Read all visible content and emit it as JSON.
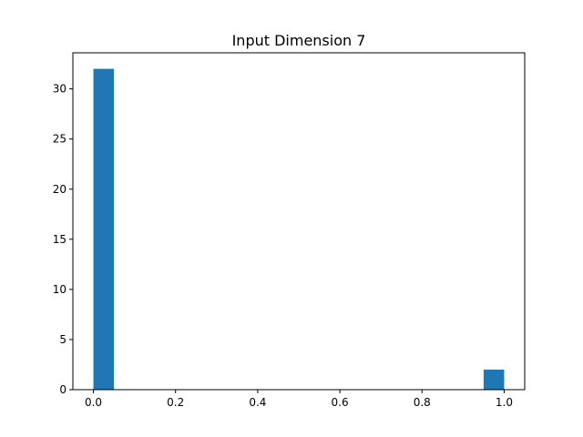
{
  "chart_data": {
    "type": "bar",
    "title": "Input Dimension 7",
    "xlabel": "",
    "ylabel": "",
    "bin_edges": [
      0.0,
      0.05,
      0.1,
      0.15,
      0.2,
      0.25,
      0.3,
      0.35,
      0.4,
      0.45,
      0.5,
      0.55,
      0.6,
      0.65,
      0.7,
      0.75,
      0.8,
      0.85,
      0.9,
      0.95,
      1.0
    ],
    "values": [
      32,
      0,
      0,
      0,
      0,
      0,
      0,
      0,
      0,
      0,
      0,
      0,
      0,
      0,
      0,
      0,
      0,
      0,
      0,
      2
    ],
    "xlim": [
      -0.05,
      1.05
    ],
    "ylim": [
      0,
      33.6
    ],
    "xticks": [
      "0.0",
      "0.2",
      "0.4",
      "0.6",
      "0.8",
      "1.0"
    ],
    "yticks": [
      "0",
      "5",
      "10",
      "15",
      "20",
      "25",
      "30"
    ],
    "grid": false,
    "bar_color": "#1f77b4"
  }
}
